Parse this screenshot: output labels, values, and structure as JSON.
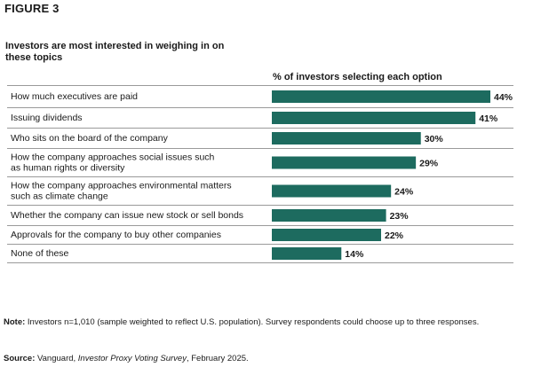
{
  "figure_label": "FIGURE 3",
  "note": {
    "label": "Note:",
    "text": " Investors n=1,010 (sample weighted to reflect U.S. population). Survey respondents could choose up to three responses."
  },
  "source": {
    "label": "Source:",
    "pre": " Vanguard, ",
    "title": "Investor Proxy Voting Survey",
    "post": ", February 2025."
  },
  "colors": {
    "bar": "#1d6b5f",
    "divider": "#9a9a9a",
    "text": "#1a1a1a"
  },
  "chart_data": {
    "type": "bar",
    "orientation": "horizontal",
    "title": "Investors are most interested in weighing in on these topics",
    "xlabel": "% of investors selecting each option",
    "value_suffix": "%",
    "xlim": [
      0,
      44
    ],
    "grid": false,
    "categories": [
      [
        "How much executives are paid"
      ],
      [
        "Issuing dividends"
      ],
      [
        "Who sits on the board of the company"
      ],
      [
        "How the company approaches social issues such",
        "as human rights or diversity"
      ],
      [
        "How the company approaches environmental matters",
        "such as climate change"
      ],
      [
        "Whether the company can issue new stock or sell bonds"
      ],
      [
        "Approvals for the company to buy other companies"
      ],
      [
        "None of these"
      ]
    ],
    "values": [
      44,
      41,
      30,
      29,
      24,
      23,
      22,
      14
    ]
  }
}
